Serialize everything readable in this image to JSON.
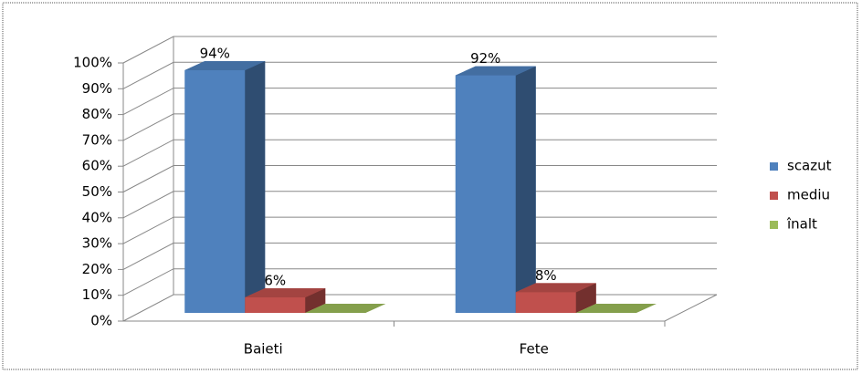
{
  "chart_data": {
    "type": "bar3d",
    "categories": [
      "Baieti",
      "Fete"
    ],
    "series": [
      {
        "name": "scazut",
        "color": "#4f81bd",
        "values": [
          94,
          92
        ],
        "value_labels": [
          "94%",
          "92%"
        ]
      },
      {
        "name": "mediu",
        "color": "#c0504d",
        "values": [
          6,
          8
        ],
        "value_labels": [
          "6%",
          "8%"
        ]
      },
      {
        "name": "înalt",
        "color": "#9bbb59",
        "values": [
          0,
          0
        ]
      }
    ],
    "ylim": [
      0,
      100
    ],
    "yticks": [
      {
        "value": 0,
        "label": "0%"
      },
      {
        "value": 10,
        "label": "10%"
      },
      {
        "value": 20,
        "label": "20%"
      },
      {
        "value": 30,
        "label": "30%"
      },
      {
        "value": 40,
        "label": "40%"
      },
      {
        "value": 50,
        "label": "50%"
      },
      {
        "value": 60,
        "label": "60%"
      },
      {
        "value": 70,
        "label": "70%"
      },
      {
        "value": 80,
        "label": "80%"
      },
      {
        "value": 90,
        "label": "90%"
      },
      {
        "value": 100,
        "label": "100%"
      }
    ],
    "grid": true,
    "legend": "right"
  }
}
